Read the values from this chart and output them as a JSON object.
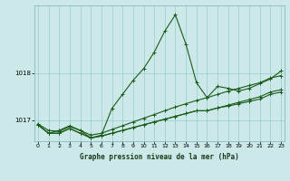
{
  "title": "Graphe pression niveau de la mer (hPa)",
  "bg_color": "#cce8e8",
  "grid_color": "#99cccc",
  "line_color": "#1a5c1a",
  "x_ticks": [
    0,
    1,
    2,
    3,
    4,
    5,
    6,
    7,
    8,
    9,
    10,
    11,
    12,
    13,
    14,
    15,
    16,
    17,
    18,
    19,
    20,
    21,
    22,
    23
  ],
  "y_ticks": [
    1017,
    1018
  ],
  "ylim": [
    1016.55,
    1019.45
  ],
  "xlim": [
    -0.3,
    23.3
  ],
  "series": [
    [
      1016.9,
      1016.72,
      1016.78,
      1016.88,
      1016.78,
      1016.62,
      1016.68,
      1017.25,
      1017.55,
      1017.85,
      1018.1,
      1018.45,
      1018.9,
      1019.25,
      1018.62,
      1017.8,
      1017.48,
      1017.72,
      1017.68,
      1017.62,
      1017.68,
      1017.78,
      1017.88,
      1018.05
    ],
    [
      1016.92,
      1016.78,
      1016.76,
      1016.86,
      1016.78,
      1016.68,
      1016.72,
      1016.8,
      1016.88,
      1016.96,
      1017.04,
      1017.12,
      1017.2,
      1017.28,
      1017.35,
      1017.42,
      1017.48,
      1017.55,
      1017.62,
      1017.68,
      1017.74,
      1017.8,
      1017.9,
      1017.95
    ],
    [
      1016.9,
      1016.72,
      1016.72,
      1016.82,
      1016.72,
      1016.62,
      1016.66,
      1016.72,
      1016.78,
      1016.84,
      1016.9,
      1016.96,
      1017.02,
      1017.08,
      1017.14,
      1017.2,
      1017.2,
      1017.26,
      1017.32,
      1017.38,
      1017.44,
      1017.5,
      1017.6,
      1017.65
    ],
    [
      1016.9,
      1016.72,
      1016.72,
      1016.82,
      1016.72,
      1016.62,
      1016.66,
      1016.72,
      1016.78,
      1016.84,
      1016.9,
      1016.96,
      1017.02,
      1017.08,
      1017.14,
      1017.2,
      1017.2,
      1017.26,
      1017.3,
      1017.35,
      1017.4,
      1017.45,
      1017.55,
      1017.6
    ]
  ]
}
